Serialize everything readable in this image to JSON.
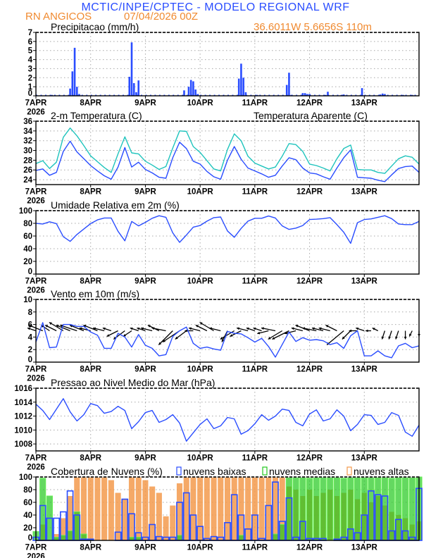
{
  "header": {
    "title": "MCTIC/INPE/CPTEC - MODELO REGIONAL WRF",
    "location": "RN ANGICOS",
    "run": "07/04/2026 00Z",
    "coords": "36.6011W 5.6656S 110m"
  },
  "time_axis": {
    "tick_labels": [
      "7APR",
      "8APR",
      "9APR",
      "10APR",
      "11APR",
      "12APR",
      "13APR"
    ],
    "year_label": "2026",
    "range_hours": [
      0,
      168
    ]
  },
  "colors": {
    "blue": "#2a4dff",
    "cyan": "#1fc4bd",
    "orange": "#f39a4c",
    "green": "#22c81e",
    "title_blue": "#2a4dff",
    "title_orange": "#f08a30"
  },
  "chart_data": [
    {
      "type": "bar",
      "title": "Precipitacao (mm/h)",
      "ylim": [
        0,
        7
      ],
      "yticks": [
        0,
        1,
        2,
        3,
        4,
        5,
        6,
        7
      ],
      "bars_hour_value": [
        [
          7,
          0.1
        ],
        [
          15,
          0.8
        ],
        [
          16,
          2.7
        ],
        [
          17,
          5.3
        ],
        [
          18,
          1.0
        ],
        [
          19,
          0.2
        ],
        [
          41,
          2.1
        ],
        [
          42,
          5.9
        ],
        [
          43,
          1.4
        ],
        [
          44,
          0.4
        ],
        [
          45,
          1.7
        ],
        [
          65,
          0.6
        ],
        [
          67,
          1.0
        ],
        [
          68,
          1.75
        ],
        [
          69,
          1.6
        ],
        [
          70,
          0.7
        ],
        [
          71,
          0.2
        ],
        [
          89,
          1.9
        ],
        [
          90,
          3.55
        ],
        [
          91,
          2.0
        ],
        [
          92,
          0.4
        ],
        [
          97,
          0.1
        ],
        [
          110,
          1.2
        ],
        [
          111,
          2.55
        ],
        [
          112,
          0.1
        ],
        [
          117,
          0.3
        ],
        [
          118,
          0.3
        ],
        [
          119,
          0.2
        ],
        [
          120,
          0.2
        ],
        [
          127,
          0.1
        ],
        [
          128,
          0.45
        ],
        [
          134,
          0.1
        ],
        [
          135,
          0.15
        ],
        [
          143,
          0.85
        ],
        [
          151,
          0.15
        ],
        [
          152,
          0.25
        ],
        [
          153,
          0.2
        ],
        [
          161,
          0.1
        ],
        [
          165,
          0.1
        ]
      ]
    },
    {
      "type": "line",
      "title": "2-m Temperatura (C)",
      "ylim": [
        23,
        36
      ],
      "yticks": [
        24,
        26,
        28,
        30,
        32,
        34,
        36
      ],
      "step_hours": 3,
      "series": [
        {
          "name": "2-m Temperatura (C)",
          "color": "#2a4dff",
          "values": [
            25.9,
            26.2,
            24.9,
            25.5,
            29.8,
            31.9,
            29.7,
            28.3,
            26.9,
            25.8,
            24.8,
            24.1,
            26.6,
            30.6,
            26.6,
            27.6,
            26.1,
            25.4,
            24.5,
            24.3,
            28.5,
            31.7,
            30.4,
            27.8,
            27.2,
            25.7,
            24.6,
            24.1,
            28,
            30.8,
            28.2,
            26.4,
            25.8,
            25.2,
            24.5,
            24.9,
            26.8,
            28.5,
            28.1,
            26.4,
            25.4,
            25.2,
            24.6,
            24.1,
            26.4,
            28.5,
            30.1,
            24.5,
            24.4,
            24.3,
            23.9,
            23.6,
            25,
            26.3,
            26.7,
            26.8,
            25.5
          ]
        },
        {
          "name": "Temperatura Aparente (C)",
          "color": "#1fc4bd",
          "values": [
            27.3,
            27.9,
            26.3,
            27.6,
            32.7,
            34.6,
            33,
            31,
            28.9,
            27.7,
            26.5,
            25.5,
            29.3,
            32.8,
            29.5,
            29.3,
            27.8,
            27,
            26.1,
            26.7,
            30.5,
            34,
            33.9,
            30.8,
            29.6,
            27.9,
            26.2,
            25.8,
            30.2,
            33.4,
            32,
            28.8,
            27.4,
            26.8,
            26.2,
            26.6,
            28.8,
            31.4,
            31.2,
            29.8,
            27.2,
            26.9,
            26.4,
            25.8,
            28.3,
            30.4,
            31.1,
            26.1,
            26,
            26,
            25.5,
            25.3,
            26.8,
            28.3,
            28.9,
            28.6,
            27.2
          ]
        }
      ]
    },
    {
      "type": "line",
      "title": "Umidade Relativa em 2m (%)",
      "ylim": [
        0,
        100
      ],
      "yticks": [
        0,
        20,
        40,
        60,
        80,
        100
      ],
      "step_hours": 3,
      "series": [
        {
          "name": "Umidade Relativa",
          "color": "#2a4dff",
          "values": [
            80,
            79,
            82.5,
            79.5,
            59,
            51.5,
            62.5,
            71,
            79.5,
            85.5,
            88.5,
            88.5,
            67.5,
            52.5,
            83,
            76,
            81.5,
            88,
            92,
            89.5,
            65,
            50,
            61.5,
            74,
            76.5,
            83.5,
            89,
            90,
            68,
            58,
            72,
            83.5,
            88,
            88,
            91.5,
            88.5,
            76,
            70.5,
            72.5,
            76.5,
            86,
            86.5,
            87.5,
            89,
            78,
            66,
            48.5,
            81,
            86,
            87,
            89.5,
            92,
            87.5,
            79,
            78,
            78,
            83
          ]
        }
      ]
    },
    {
      "type": "line",
      "title": "Vento em 10m (m/s)",
      "ylim": [
        0,
        10
      ],
      "yticks": [
        0,
        2,
        4,
        6,
        8,
        10
      ],
      "step_hours": 3,
      "series": [
        {
          "name": "Velocidade do vento",
          "color": "#2a4dff",
          "values": [
            3.2,
            6.3,
            2.3,
            2.4,
            6.0,
            6.0,
            5.7,
            5.7,
            4.8,
            4.3,
            2.2,
            2.2,
            4.6,
            4.0,
            2.4,
            4.4,
            2.7,
            2.2,
            1.0,
            1.2,
            4.1,
            5.0,
            5.6,
            3.0,
            2.2,
            2.4,
            2.1,
            1.9,
            4.9,
            4.6,
            4.5,
            3.9,
            3.2,
            3.8,
            2.5,
            0.8,
            2.8,
            4.8,
            3.3,
            3.9,
            3.5,
            3.6,
            3.4,
            2.8,
            3.1,
            2.2,
            4.2,
            5.0,
            1.0,
            1.0,
            1.8,
            1.0,
            0.7,
            2.6,
            3.0,
            2.3,
            2.6
          ]
        }
      ],
      "vectors": {
        "baseline": 5,
        "u": [
          -3,
          -5,
          -3,
          -4,
          -5,
          -5,
          -6,
          -5,
          -4,
          -5,
          -4,
          -3,
          -4,
          -4,
          -3,
          -3,
          -3,
          -4,
          -4,
          -5,
          -5,
          -6,
          -4,
          -3,
          -4,
          -4,
          -5,
          -4,
          -2,
          -5,
          -4,
          -4,
          -3,
          -3,
          -4,
          -5,
          -5,
          -6,
          -4,
          -4,
          -5,
          -5,
          -4,
          -4,
          -4,
          -6,
          -3,
          -3,
          -3,
          -2,
          -2,
          -1,
          -1,
          -1,
          0,
          -1,
          0
        ],
        "v": [
          1,
          2,
          2,
          2,
          3,
          2,
          2,
          2,
          1,
          2,
          1,
          1,
          -2,
          -3,
          -2,
          1,
          1,
          1,
          2,
          1,
          -5,
          -4,
          -3,
          0,
          1,
          2,
          3,
          1,
          -4,
          -3,
          -2,
          1,
          1,
          1,
          -1,
          1,
          -3,
          -3,
          -1,
          1,
          2,
          1,
          1,
          1,
          2,
          -5,
          -3,
          0,
          1,
          0,
          1,
          -3,
          -3,
          -3,
          -3,
          -2,
          -2
        ]
      }
    },
    {
      "type": "line",
      "title": "Pressao ao Nivel Medio do Mar (hPa)",
      "ylim": [
        1007,
        1016
      ],
      "yticks": [
        1008,
        1010,
        1012,
        1014,
        1016
      ],
      "step_hours": 3,
      "series": [
        {
          "name": "Pressao",
          "color": "#2a4dff",
          "values": [
            1013.7,
            1012.8,
            1011.5,
            1013.0,
            1014.5,
            1012.6,
            1011.3,
            1012.2,
            1013.8,
            1013.5,
            1012.4,
            1012.65,
            1013.4,
            1012.8,
            1010.2,
            1011.2,
            1012.5,
            1012.8,
            1011.1,
            1011.5,
            1012.2,
            1011,
            1008.4,
            1009.6,
            1010.8,
            1011.6,
            1010.2,
            1010.6,
            1011.8,
            1011.6,
            1009.4,
            1009.9,
            1010.9,
            1012.2,
            1011.4,
            1012,
            1013,
            1012.8,
            1011.1,
            1010.6,
            1012.3,
            1012.9,
            1011.3,
            1011.6,
            1012.9,
            1012,
            1009.9,
            1010.8,
            1012.2,
            1012.1,
            1010.8,
            1011.1,
            1012.5,
            1012.1,
            1009.7,
            1009.1,
            1010.7
          ]
        }
      ]
    },
    {
      "type": "bar",
      "title": "Cobertura de Nuvens (%)",
      "ylim": [
        0,
        100
      ],
      "yticks": [
        0,
        20,
        40,
        60,
        80,
        100
      ],
      "step_hours": 3,
      "legend": [
        "nuvens baixas",
        "nuvens medias",
        "nuvens altas"
      ],
      "series": [
        {
          "name": "nuvens altas",
          "color": "#f39a4c",
          "values": [
            0,
            25,
            0,
            10,
            35,
            70,
            100,
            100,
            100,
            100,
            100,
            95,
            75,
            65,
            100,
            100,
            95,
            85,
            75,
            38,
            55,
            90,
            100,
            100,
            100,
            100,
            100,
            100,
            100,
            100,
            100,
            100,
            100,
            100,
            100,
            100,
            100,
            85,
            80,
            70,
            80,
            70,
            75,
            80,
            70,
            75,
            80,
            65,
            75,
            60,
            70,
            55,
            45,
            40,
            35,
            25,
            30
          ]
        },
        {
          "name": "nuvens medias",
          "color": "#22c81e",
          "values": [
            14,
            98,
            70,
            5,
            8,
            15,
            45,
            10,
            2,
            0,
            0,
            0,
            0,
            0,
            5,
            5,
            0,
            0,
            0,
            0,
            0,
            8,
            0,
            0,
            0,
            0,
            0,
            0,
            0,
            0,
            8,
            0,
            0,
            0,
            0,
            10,
            25,
            100,
            100,
            100,
            98,
            100,
            100,
            100,
            100,
            98,
            100,
            100,
            100,
            100,
            100,
            100,
            98,
            100,
            100,
            100,
            100
          ]
        },
        {
          "name": "nuvens baixas",
          "color": "#2a4dff",
          "values": [
            5,
            55,
            35,
            35,
            45,
            78,
            40,
            2,
            2,
            0,
            0,
            0,
            13,
            65,
            42,
            12,
            5,
            25,
            6,
            5,
            5,
            60,
            75,
            40,
            22,
            3,
            6,
            5,
            28,
            72,
            40,
            18,
            40,
            3,
            55,
            92,
            30,
            67,
            5,
            30,
            3,
            3,
            3,
            0,
            2,
            5,
            18,
            12,
            40,
            78,
            72,
            70,
            15,
            33,
            15,
            5,
            82
          ]
        }
      ]
    }
  ]
}
